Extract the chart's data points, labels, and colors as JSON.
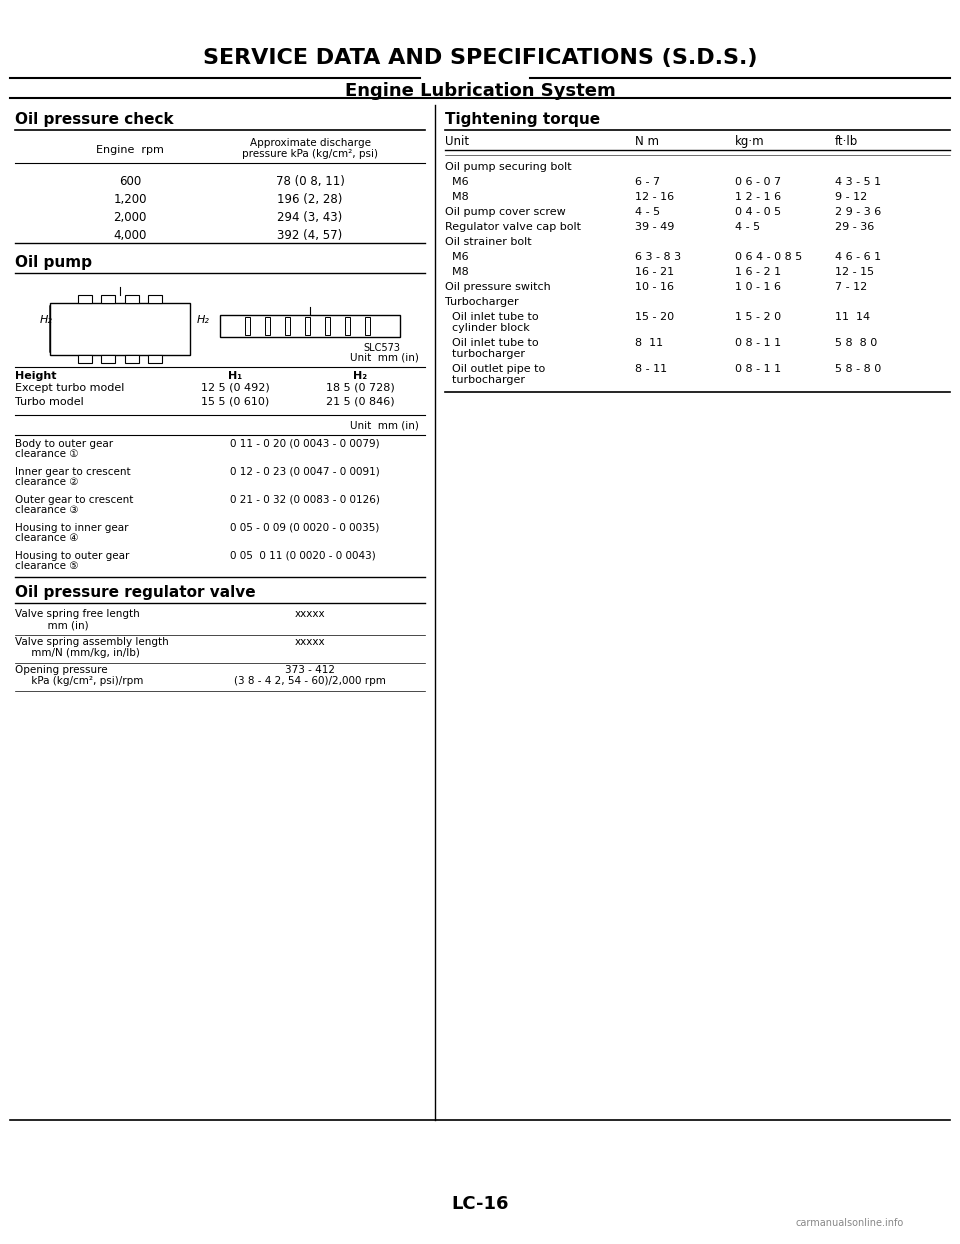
{
  "title": "SERVICE DATA AND SPECIFICATIONS (S.D.S.)",
  "subtitle": "Engine Lubrication System",
  "page_number": "LC-16",
  "watermark": "carmanualsonline.info",
  "bg_color": "#ffffff",
  "text_color": "#000000",
  "left_section": {
    "oil_pressure_check": {
      "heading": "Oil pressure check",
      "col1_header": "Engine  rpm",
      "col2_header": "Approximate discharge\npressure kPa (kg/cm², psi)",
      "rows": [
        [
          "600",
          "78 (0 8, 11)"
        ],
        [
          "1,200",
          "196 (2, 28)"
        ],
        [
          "2,000",
          "294 (3, 43)"
        ],
        [
          "4,000",
          "392 (4, 57)"
        ]
      ]
    },
    "oil_pump": {
      "heading": "Oil pump",
      "diagram_label": "SLC573",
      "unit_label": "Unit  mm (in)",
      "height_rows": [
        [
          "Height",
          "H₁",
          "H₂"
        ],
        [
          "Except turbo model",
          "12 5 (0 492)",
          "18 5 (0 728)"
        ],
        [
          "Turbo model",
          "15 5 (0 610)",
          "21 5 (0 846)"
        ]
      ],
      "clearance_unit": "Unit  mm (in)",
      "clearance_rows": [
        [
          "Body to outer gear\nclearance ①",
          "0 11 - 0 20 (0 0043 - 0 0079)"
        ],
        [
          "Inner gear to crescent\nclearance ②",
          "0 12 - 0 23 (0 0047 - 0 0091)"
        ],
        [
          "Outer gear to crescent\nclearance ③",
          "0 21 - 0 32 (0 0083 - 0 0126)"
        ],
        [
          "Housing to inner gear\nclearance ④",
          "0 05 - 0 09 (0 0020 - 0 0035)"
        ],
        [
          "Housing to outer gear\nclearance ⑤",
          "0 05  0 11 (0 0020 - 0 0043)"
        ]
      ]
    },
    "oil_pressure_regulator": {
      "heading": "Oil pressure regulator valve",
      "rows": [
        [
          "Valve spring free length\n          mm (in)",
          "xxxxx"
        ],
        [
          "Valve spring assembly length\n     mm/N (mm/kg, in/lb)",
          "xxxxx"
        ],
        [
          "Opening pressure\n     kPa (kg/cm², psi)/rpm",
          "373 - 412\n(3 8 - 4 2, 54 - 60)/2,000 rpm"
        ]
      ]
    }
  },
  "right_section": {
    "tightening_torque": {
      "heading": "Tightening torque",
      "headers": [
        "Unit",
        "N m",
        "kg·m",
        "ft·lb"
      ],
      "rows": [
        [
          "Oil pump securing bolt",
          "",
          "",
          ""
        ],
        [
          "  M6",
          "6 - 7",
          "0 6 - 0 7",
          "4 3 - 5 1"
        ],
        [
          "  M8",
          "12 - 16",
          "1 2 - 1 6",
          "9 - 12"
        ],
        [
          "Oil pump cover screw",
          "4 - 5",
          "0 4 - 0 5",
          "2 9 - 3 6"
        ],
        [
          "Regulator valve cap bolt",
          "39 - 49",
          "4 - 5",
          "29 - 36"
        ],
        [
          "Oil strainer bolt",
          "",
          "",
          ""
        ],
        [
          "  M6",
          "6 3 - 8 3",
          "0 6 4 - 0 8 5",
          "4 6 - 6 1"
        ],
        [
          "  M8",
          "16 - 21",
          "1 6 - 2 1",
          "12 - 15"
        ],
        [
          "Oil pressure switch",
          "10 - 16",
          "1 0 - 1 6",
          "7 - 12"
        ],
        [
          "Turbocharger",
          "",
          "",
          ""
        ],
        [
          "  Oil inlet tube to\n  cylinder block",
          "15 - 20",
          "1 5 - 2 0",
          "11  14"
        ],
        [
          "  Oil inlet tube to\n  turbocharger",
          "8  11",
          "0 8 - 1 1",
          "5 8  8 0"
        ],
        [
          "  Oil outlet pipe to\n  turbocharger",
          "8 - 11",
          "0 8 - 1 1",
          "5 8 - 8 0"
        ]
      ]
    }
  }
}
